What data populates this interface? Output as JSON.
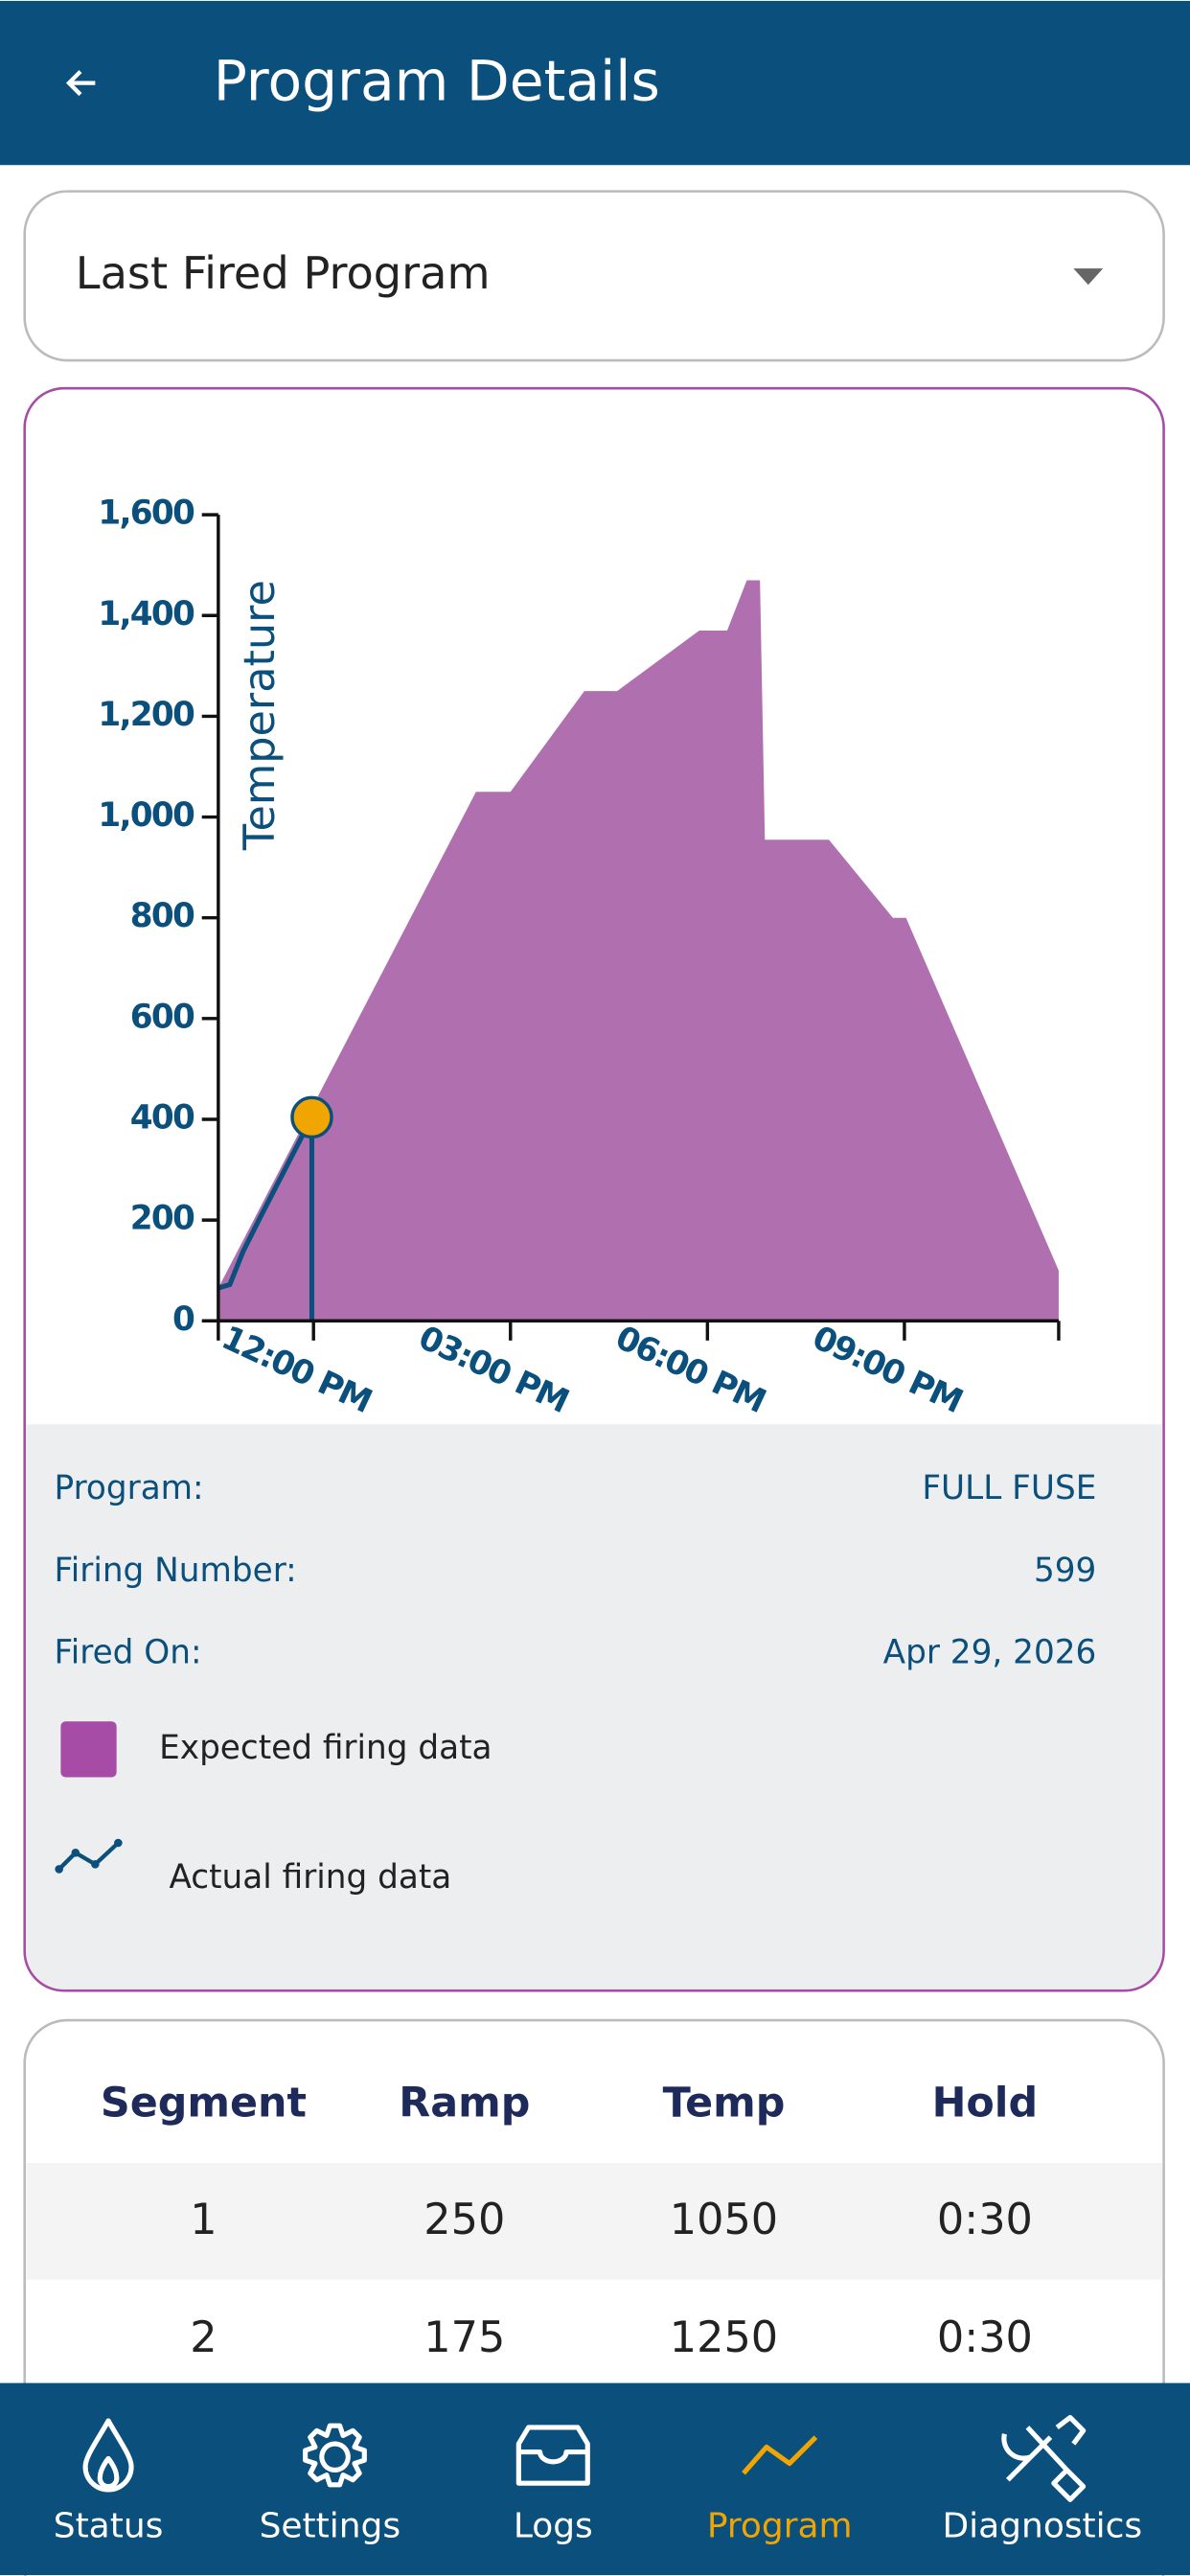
{
  "header": {
    "title": "Program Details"
  },
  "dropdown": {
    "selected": "Last Fired Program"
  },
  "chart_data": {
    "type": "area",
    "y_label": "Temperature",
    "xlim": [
      10.55,
      23.35
    ],
    "ylim": [
      0,
      1600
    ],
    "xticks": [
      {
        "value": 12,
        "label": "12:00 PM"
      },
      {
        "value": 15,
        "label": "03:00 PM"
      },
      {
        "value": 18,
        "label": "06:00 PM"
      },
      {
        "value": 21,
        "label": "09:00 PM"
      }
    ],
    "yticks": [
      0,
      200,
      400,
      600,
      800,
      {
        "value": 1000,
        "label": "1,000"
      },
      {
        "value": 1200,
        "label": "1,200"
      },
      {
        "value": 1400,
        "label": "1,400"
      },
      {
        "value": 1600,
        "label": "1,600"
      }
    ],
    "series": [
      {
        "name": "Expected firing data",
        "type": "area",
        "color": "#b070b0",
        "x": [
          10.55,
          14.475,
          15.0,
          16.125,
          16.625,
          17.875,
          18.3,
          18.6,
          18.8,
          18.875,
          19.85,
          20.825,
          21.025,
          23.35
        ],
        "values": [
          65,
          1050,
          1050,
          1250,
          1250,
          1370,
          1370,
          1470,
          1470,
          955,
          955,
          800,
          800,
          100
        ]
      },
      {
        "name": "Actual firing data",
        "type": "line",
        "color": "#0b4f7c",
        "x": [
          10.55,
          10.725,
          10.925,
          11.175,
          11.975
        ],
        "values": [
          65,
          72,
          137,
          202,
          404
        ]
      }
    ]
  },
  "details": [
    {
      "label": "Program:",
      "value": "FULL FUSE"
    },
    {
      "label": "Firing Number:",
      "value": "599"
    },
    {
      "label": "Fired On:",
      "value": "Apr 29, 2026"
    }
  ],
  "table": {
    "headers": [
      "Segment",
      "Ramp",
      "Temp",
      "Hold"
    ],
    "rows": [
      [
        "1",
        "250",
        "1050",
        "0:30"
      ],
      [
        "2",
        "175",
        "1250",
        "0:30"
      ]
    ]
  },
  "nav": [
    {
      "label": "Status"
    },
    {
      "label": "Settings"
    },
    {
      "label": "Logs"
    },
    {
      "label": "Program",
      "active": true
    },
    {
      "label": "Diagnostics"
    }
  ]
}
